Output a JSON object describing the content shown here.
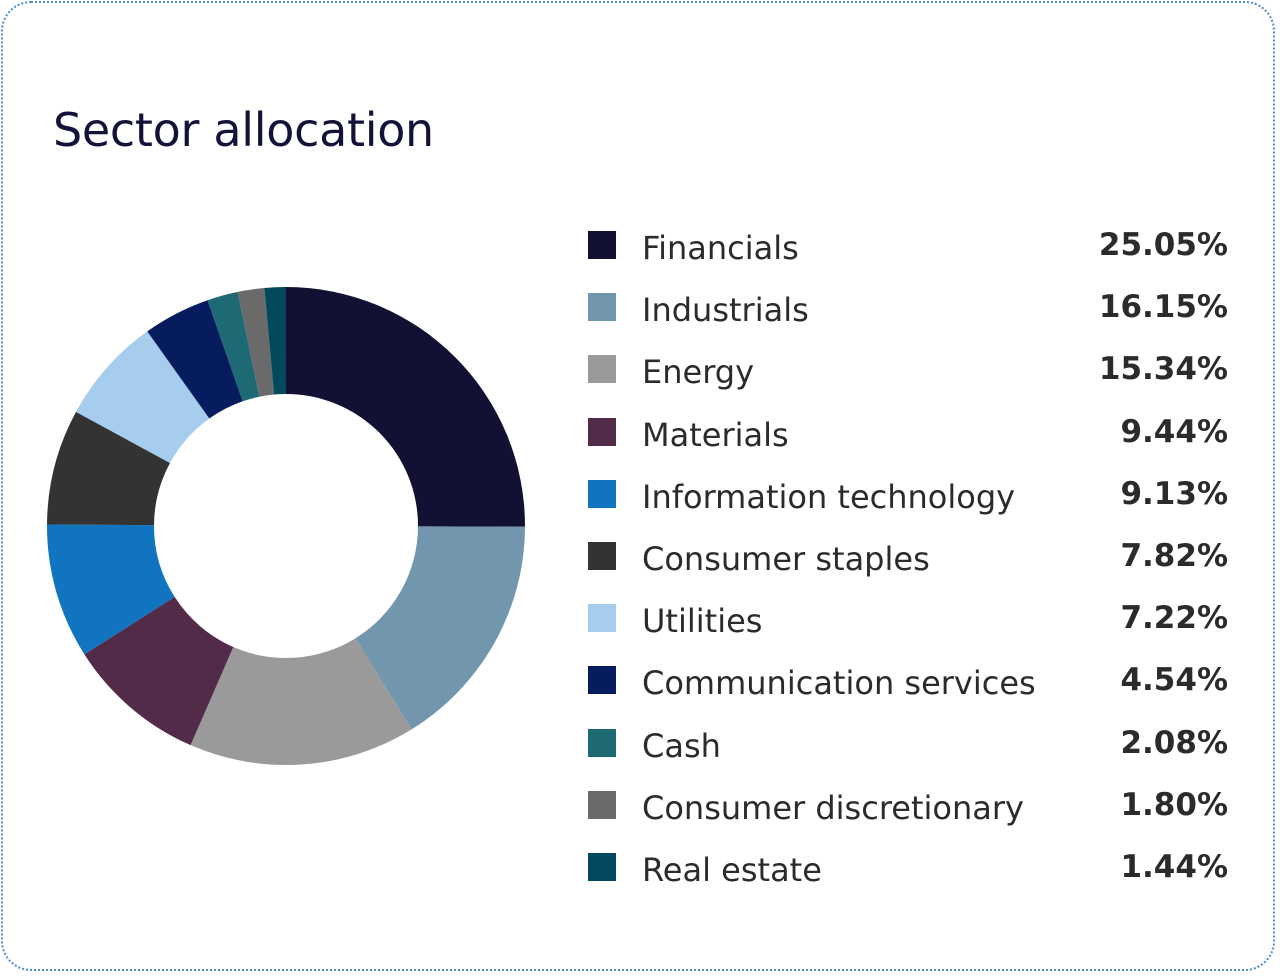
{
  "chart_data": {
    "type": "pie",
    "title": "Sector allocation",
    "categories": [
      "Financials",
      "Industrials",
      "Energy",
      "Materials",
      "Information technology",
      "Consumer staples",
      "Utilities",
      "Communication services",
      "Cash",
      "Consumer discretionary",
      "Real estate"
    ],
    "values": [
      25.05,
      16.15,
      15.34,
      9.44,
      9.13,
      7.82,
      7.22,
      4.54,
      2.08,
      1.8,
      1.44
    ],
    "value_labels": [
      "25.05%",
      "16.15%",
      "15.34%",
      "9.44%",
      "9.13%",
      "7.82%",
      "7.22%",
      "4.54%",
      "2.08%",
      "1.80%",
      "1.44%"
    ],
    "colors": [
      "#121133",
      "#7196ad",
      "#9a9a9a",
      "#512b48",
      "#1174c0",
      "#333333",
      "#a6cdee",
      "#061c5f",
      "#1e6a74",
      "#6a6a6a",
      "#02485e"
    ],
    "legend_position": "right"
  }
}
